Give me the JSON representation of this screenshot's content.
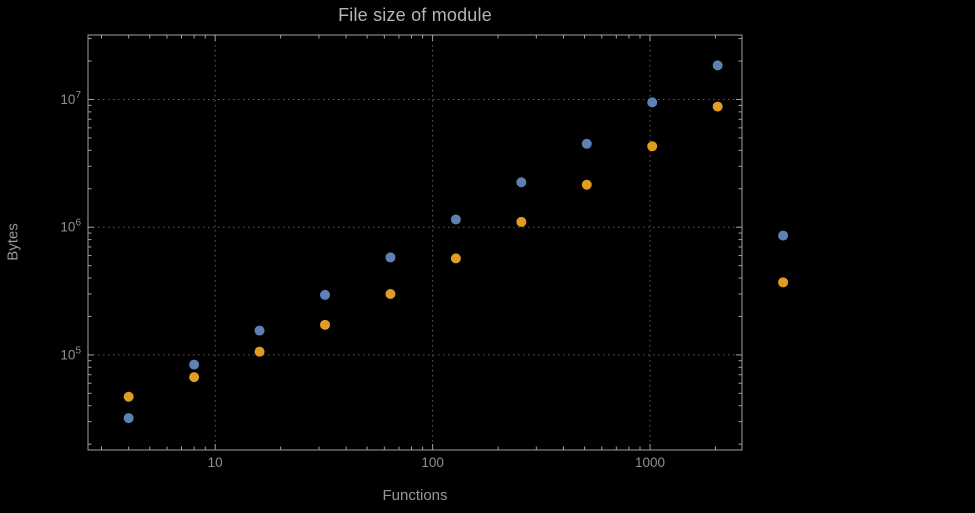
{
  "colors": {
    "background": "#000000",
    "frame": "#a0a0a0",
    "grid": "#5f5f5f",
    "title": "#b5b5b5",
    "axis_label": "#979797",
    "tick_label": "#8f8f8f",
    "series_blue": "#5e81b5",
    "series_orange": "#e19c24"
  },
  "chart_data": {
    "type": "scatter",
    "title": "File size of module",
    "xlabel": "Functions",
    "ylabel": "Bytes",
    "x_scale": "log",
    "y_scale": "log",
    "grid": true,
    "grid_style": "dotted",
    "frame": true,
    "legend": "none",
    "xlim": [
      2.6,
      2650
    ],
    "ylim": [
      18000,
      32000000
    ],
    "x_ticks": [
      {
        "value": 10,
        "label": "10"
      },
      {
        "value": 100,
        "label": "100"
      },
      {
        "value": 1000,
        "label": "1000"
      }
    ],
    "y_ticks": [
      {
        "value": 100000,
        "mantissa": "10",
        "exponent": "5"
      },
      {
        "value": 1000000,
        "mantissa": "10",
        "exponent": "6"
      },
      {
        "value": 10000000,
        "mantissa": "10",
        "exponent": "7"
      }
    ],
    "series": [
      {
        "name": "series-1-blue",
        "color": "#5e81b5",
        "x": [
          4,
          8,
          16,
          32,
          64,
          128,
          256,
          512,
          1024,
          2048,
          4096
        ],
        "y": [
          32000,
          84000,
          155000,
          295000,
          580000,
          1150000,
          2250000,
          4500000,
          9500000,
          18500000,
          860000
        ]
      },
      {
        "name": "series-2-orange",
        "color": "#e19c24",
        "x": [
          4,
          8,
          16,
          32,
          64,
          128,
          256,
          512,
          1024,
          2048,
          4096
        ],
        "y": [
          47000,
          67000,
          106000,
          172000,
          300000,
          570000,
          1100000,
          2150000,
          4300000,
          8800000,
          370000
        ]
      }
    ]
  }
}
